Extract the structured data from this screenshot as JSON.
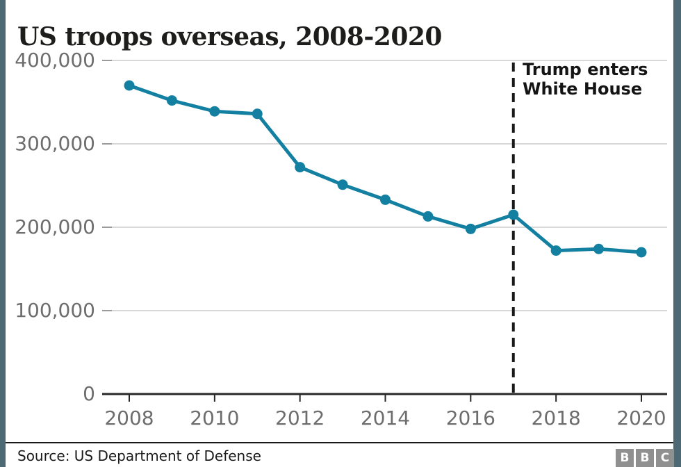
{
  "title": "US troops overseas, 2008-2020",
  "annotation": {
    "line1": "Trump enters",
    "line2": "White House"
  },
  "source": "Source: US Department of Defense",
  "logo": {
    "letters": [
      "B",
      "B",
      "C"
    ]
  },
  "colors": {
    "line": "#1380a1",
    "marker": "#1380a1",
    "grid": "#d8d8d8",
    "grid_tick": "#9a9a9a",
    "axis": "#262626",
    "tick_label": "#6d6d6d",
    "dashed_line": "#1a1a1a",
    "side_strip": "#4d6974",
    "logo_gray": "#909090"
  },
  "chart_data": {
    "type": "line",
    "title": "US troops overseas, 2008-2020",
    "x": [
      2008,
      2009,
      2010,
      2011,
      2012,
      2013,
      2014,
      2015,
      2016,
      2017,
      2018,
      2019,
      2020
    ],
    "values": [
      370000,
      352000,
      339000,
      336000,
      272000,
      251000,
      233000,
      213000,
      198000,
      215000,
      172000,
      174000,
      170000
    ],
    "series_name": "US troops overseas",
    "xlabel": "",
    "ylabel": "",
    "xlim": [
      2008,
      2020
    ],
    "ylim": [
      0,
      400000
    ],
    "xticks": [
      2008,
      2010,
      2012,
      2014,
      2016,
      2018,
      2020
    ],
    "yticks": [
      {
        "value": 0,
        "label": "0"
      },
      {
        "value": 100000,
        "label": "100,000"
      },
      {
        "value": 200000,
        "label": "200,000"
      },
      {
        "value": 300000,
        "label": "300,000"
      },
      {
        "value": 400000,
        "label": "400,000"
      }
    ],
    "grid": "horizontal",
    "marker": "circle",
    "legend": "none",
    "vline": {
      "x": 2017,
      "style": "dashed",
      "label": "Trump enters White House"
    }
  }
}
